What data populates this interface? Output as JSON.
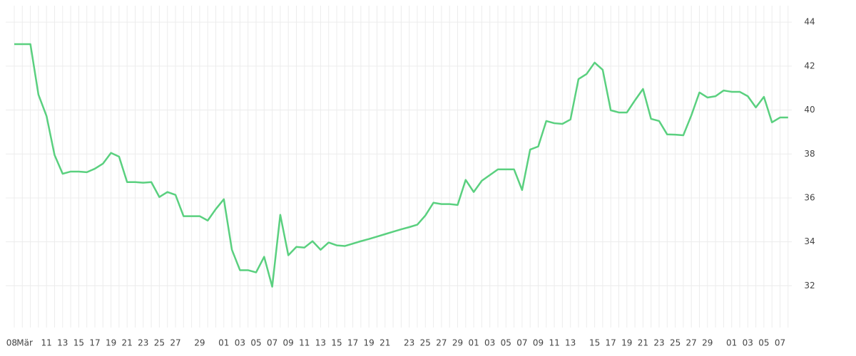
{
  "chart_data": {
    "type": "line",
    "categories": [
      "08",
      "Mär",
      null,
      null,
      "11",
      null,
      "13",
      null,
      "15",
      null,
      "17",
      null,
      "19",
      null,
      "21",
      null,
      "23",
      null,
      "25",
      null,
      "27",
      null,
      null,
      "29",
      null,
      null,
      "01",
      null,
      "03",
      null,
      "05",
      null,
      "07",
      null,
      "09",
      null,
      "11",
      null,
      "13",
      null,
      "15",
      null,
      "17",
      null,
      "19",
      null,
      "21",
      null,
      null,
      "23",
      null,
      "25",
      null,
      "27",
      null,
      "29",
      null,
      "01",
      null,
      "03",
      null,
      "05",
      null,
      "07",
      null,
      "09",
      null,
      "11",
      null,
      "13",
      null,
      null,
      "15",
      null,
      "17",
      null,
      "19",
      null,
      "21",
      null,
      "23",
      null,
      "25",
      null,
      "27",
      null,
      "29",
      null,
      null,
      "01",
      null,
      "03",
      null,
      "05",
      null,
      "07",
      null
    ],
    "series": [
      {
        "color": "#5ad07f",
        "values": [
          43.0,
          43.0,
          43.0,
          40.7,
          39.73,
          37.95,
          37.1,
          37.2,
          37.2,
          37.17,
          37.33,
          37.56,
          38.05,
          37.88,
          36.72,
          36.72,
          36.69,
          36.72,
          36.04,
          36.27,
          36.14,
          35.17,
          35.17,
          35.17,
          34.97,
          35.49,
          35.94,
          33.64,
          32.71,
          32.71,
          32.61,
          33.32,
          31.96,
          35.23,
          33.39,
          33.77,
          33.74,
          34.03,
          33.64,
          33.97,
          33.84,
          33.81,
          33.92,
          34.03,
          34.13,
          34.24,
          34.35,
          34.46,
          34.57,
          34.67,
          34.78,
          35.2,
          35.78,
          35.72,
          35.72,
          35.68,
          36.82,
          36.27,
          36.78,
          37.04,
          37.3,
          37.3,
          37.3,
          36.36,
          38.2,
          38.34,
          39.5,
          39.4,
          39.37,
          39.57,
          41.41,
          41.64,
          42.16,
          41.83,
          39.99,
          39.89,
          39.89,
          40.44,
          40.96,
          39.6,
          39.5,
          38.89,
          38.88,
          38.85,
          39.76,
          40.8,
          40.57,
          40.63,
          40.89,
          40.83,
          40.83,
          40.63,
          40.12,
          40.6,
          39.44,
          39.66,
          39.66
        ]
      }
    ],
    "ylim": [
      30.1,
      44.75
    ],
    "yticks": [
      32,
      34,
      36,
      38,
      40,
      42,
      44
    ],
    "grid": true
  }
}
